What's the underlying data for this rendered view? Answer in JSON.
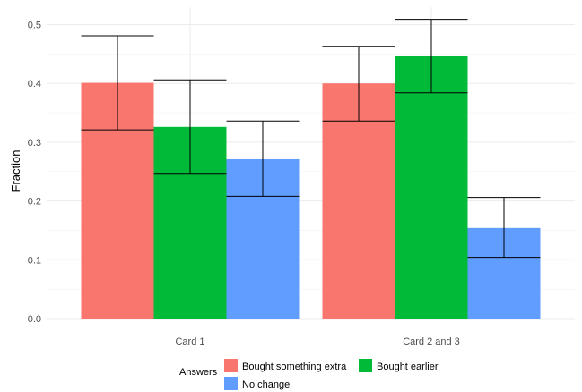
{
  "chart_data": {
    "type": "bar",
    "title": "",
    "xlabel": "",
    "ylabel": "Fraction",
    "ylim": [
      0,
      0.53
    ],
    "yticks": [
      0.0,
      0.1,
      0.2,
      0.3,
      0.4,
      0.5
    ],
    "ytick_labels": [
      "0.0",
      "0.1",
      "0.2",
      "0.3",
      "0.4",
      "0.5"
    ],
    "categories": [
      "Card 1",
      "Card 2 and 3"
    ],
    "series": [
      {
        "name": "Bought something extra",
        "color": "#F8766D",
        "values": [
          0.401,
          0.4
        ],
        "error_low": [
          0.321,
          0.336
        ],
        "error_high": [
          0.481,
          0.463
        ]
      },
      {
        "name": "Bought earlier",
        "color": "#00BA38",
        "values": [
          0.326,
          0.446
        ],
        "error_low": [
          0.247,
          0.384
        ],
        "error_high": [
          0.406,
          0.509
        ]
      },
      {
        "name": "No change",
        "color": "#619CFF",
        "values": [
          0.271,
          0.154
        ],
        "error_low": [
          0.208,
          0.104
        ],
        "error_high": [
          0.336,
          0.206
        ]
      }
    ],
    "grid": true,
    "legend": {
      "title": "Answers",
      "position": "bottom"
    }
  }
}
